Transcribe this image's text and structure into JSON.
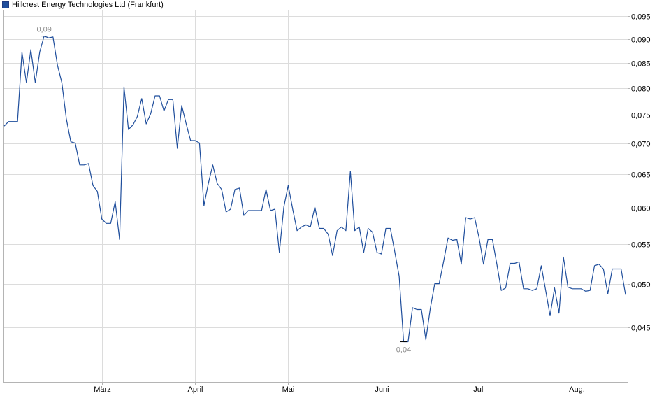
{
  "colors": {
    "series": "#1f4e9c",
    "grid": "#dcdcdc",
    "axis": "#b4b4b4",
    "legend_swatch": "#1f4e9c",
    "annotation": "#8c8c8c"
  },
  "chart_data": {
    "type": "line",
    "title": "",
    "xlabel": "",
    "ylabel": "",
    "ylim": [
      0.0395,
      0.0965
    ],
    "y_scale": "log",
    "grid": true,
    "legend_position": "top-left",
    "series": [
      {
        "name": "Hillcrest Energy Technologies Ltd (Frankfurt)",
        "values": [
          0.073,
          0.0738,
          0.0738,
          0.0738,
          0.0872,
          0.081,
          0.0877,
          0.081,
          0.0872,
          0.0906,
          0.0902,
          0.0904,
          0.0845,
          0.081,
          0.0743,
          0.0703,
          0.0701,
          0.0665,
          0.0665,
          0.0667,
          0.0633,
          0.0624,
          0.0584,
          0.0578,
          0.0578,
          0.0609,
          0.0556,
          0.0802,
          0.0724,
          0.0732,
          0.0747,
          0.078,
          0.0734,
          0.0752,
          0.0785,
          0.0785,
          0.0757,
          0.0778,
          0.0778,
          0.0692,
          0.0767,
          0.0734,
          0.0705,
          0.0705,
          0.0701,
          0.0603,
          0.0636,
          0.0665,
          0.0636,
          0.0627,
          0.0594,
          0.0598,
          0.0627,
          0.0629,
          0.0589,
          0.0596,
          0.0596,
          0.0596,
          0.0596,
          0.0627,
          0.0596,
          0.0598,
          0.0539,
          0.0601,
          0.0633,
          0.0598,
          0.0568,
          0.0573,
          0.0576,
          0.0573,
          0.0601,
          0.0571,
          0.0571,
          0.0563,
          0.0535,
          0.0568,
          0.0573,
          0.0568,
          0.0655,
          0.0568,
          0.0573,
          0.0539,
          0.0571,
          0.0566,
          0.0539,
          0.0537,
          0.0571,
          0.0571,
          0.054,
          0.0509,
          0.0435,
          0.0435,
          0.0472,
          0.047,
          0.047,
          0.0437,
          0.0471,
          0.05,
          0.05,
          0.0527,
          0.0558,
          0.0555,
          0.0556,
          0.0524,
          0.0586,
          0.0584,
          0.0586,
          0.0558,
          0.0524,
          0.0556,
          0.0556,
          0.0524,
          0.0492,
          0.0495,
          0.0525,
          0.0525,
          0.0527,
          0.0494,
          0.0494,
          0.0492,
          0.0494,
          0.0522,
          0.0492,
          0.0463,
          0.0495,
          0.0466,
          0.0533,
          0.0496,
          0.0494,
          0.0494,
          0.0494,
          0.0491,
          0.0492,
          0.0522,
          0.0524,
          0.0518,
          0.0488,
          0.0518,
          0.0518,
          0.0518,
          0.0487
        ]
      }
    ],
    "x_tick_labels": [
      "März",
      "April",
      "Mai",
      "Juni",
      "Juli",
      "Aug."
    ],
    "x_tick_positions": [
      22,
      43,
      64,
      85,
      107,
      129
    ],
    "y_ticks": [
      {
        "value": 0.045,
        "label": "0,045"
      },
      {
        "value": 0.05,
        "label": "0,050"
      },
      {
        "value": 0.055,
        "label": "0,055"
      },
      {
        "value": 0.06,
        "label": "0,060"
      },
      {
        "value": 0.065,
        "label": "0,065"
      },
      {
        "value": 0.07,
        "label": "0,070"
      },
      {
        "value": 0.075,
        "label": "0,075"
      },
      {
        "value": 0.08,
        "label": "0,080"
      },
      {
        "value": 0.085,
        "label": "0,085"
      },
      {
        "value": 0.09,
        "label": "0,090"
      },
      {
        "value": 0.095,
        "label": "0,095"
      }
    ],
    "annotations": [
      {
        "type": "max",
        "index": 9,
        "value": 0.0906,
        "label": "0,09"
      },
      {
        "type": "min",
        "index": 90,
        "value": 0.0435,
        "label": "0,04"
      }
    ]
  }
}
